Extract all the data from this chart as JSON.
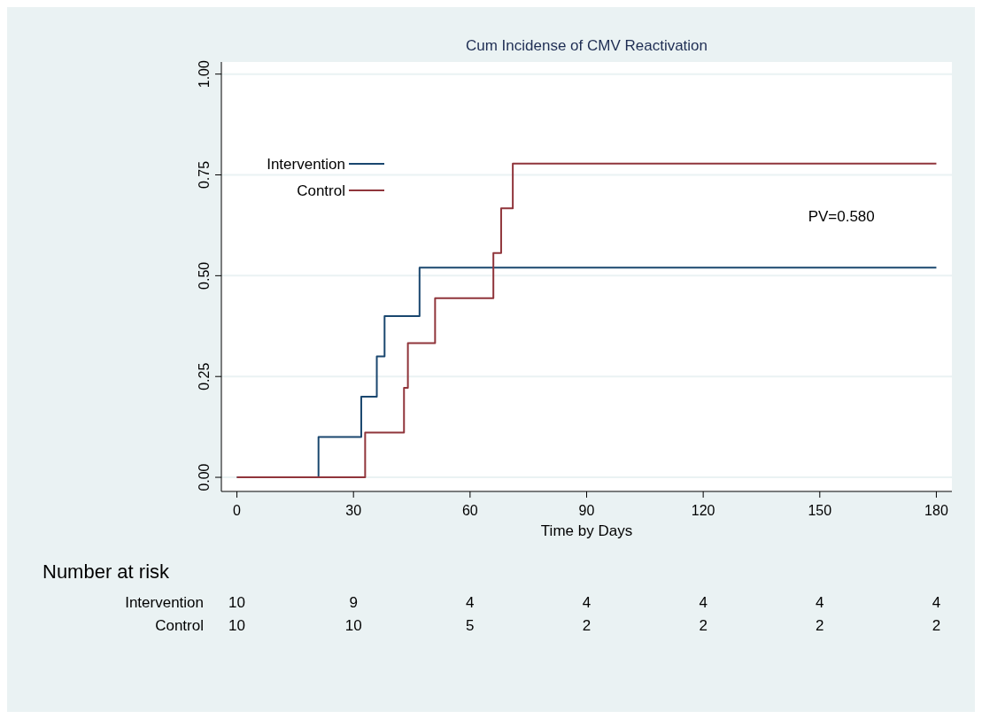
{
  "chart_data": {
    "type": "step",
    "title": "Cum Incidense of CMV Reactivation",
    "xlabel": "Time by Days",
    "xlim": [
      -4,
      184
    ],
    "xticks": [
      0,
      30,
      60,
      90,
      120,
      150,
      180
    ],
    "ylim": [
      -0.035,
      1.03
    ],
    "yticks": [
      {
        "value": 0,
        "label": "0.00"
      },
      {
        "value": 0.25,
        "label": "0.25"
      },
      {
        "value": 0.5,
        "label": "0.50"
      },
      {
        "value": 0.75,
        "label": "0.75"
      },
      {
        "value": 1,
        "label": "1.00"
      }
    ],
    "grid": "y",
    "legend": "top left",
    "series": [
      {
        "name": "Intervention",
        "color": "#1a476f",
        "x": [
          0,
          21,
          32,
          36,
          38,
          47,
          180
        ],
        "values": [
          0,
          0.1,
          0.2,
          0.3,
          0.4,
          0.52,
          0.52
        ]
      },
      {
        "name": "Control",
        "color": "#90353b",
        "x": [
          0,
          33,
          43,
          44,
          51,
          66,
          68,
          71,
          180
        ],
        "values": [
          0,
          0.111,
          0.222,
          0.333,
          0.444,
          0.556,
          0.667,
          0.778,
          0.778
        ]
      }
    ],
    "annotations": [
      "PV=0.580",
      "Number at risk",
      "Intervention",
      "10",
      "9",
      "4",
      "4",
      "4",
      "4",
      "4",
      "Control",
      "10",
      "10",
      "5",
      "2",
      "2",
      "2",
      "2"
    ]
  }
}
